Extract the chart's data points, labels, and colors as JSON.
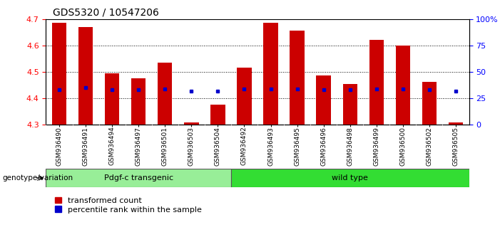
{
  "title": "GDS5320 / 10547206",
  "samples": [
    "GSM936490",
    "GSM936491",
    "GSM936494",
    "GSM936497",
    "GSM936501",
    "GSM936503",
    "GSM936504",
    "GSM936492",
    "GSM936493",
    "GSM936495",
    "GSM936496",
    "GSM936498",
    "GSM936499",
    "GSM936500",
    "GSM936502",
    "GSM936505"
  ],
  "transformed_count": [
    4.685,
    4.67,
    4.495,
    4.475,
    4.535,
    4.31,
    4.375,
    4.515,
    4.685,
    4.655,
    4.487,
    4.455,
    4.62,
    4.6,
    4.463,
    4.31
  ],
  "percentile_rank": [
    33,
    35,
    33,
    33,
    34,
    32,
    32,
    34,
    34,
    34,
    33,
    33,
    34,
    34,
    33,
    32
  ],
  "bar_color": "#cc0000",
  "dot_color": "#0000cc",
  "ylim": [
    4.3,
    4.7
  ],
  "yticks": [
    4.3,
    4.4,
    4.5,
    4.6,
    4.7
  ],
  "y2_ticks": [
    0,
    25,
    50,
    75,
    100
  ],
  "y2_labels": [
    "0",
    "25",
    "50",
    "75",
    "100%"
  ],
  "group1_label": "Pdgf-c transgenic",
  "group2_label": "wild type",
  "group1_count": 7,
  "group2_count": 9,
  "group_color1": "#98ee98",
  "group_color2": "#33dd33",
  "genotype_label": "genotype/variation",
  "legend1": "transformed count",
  "legend2": "percentile rank within the sample",
  "bar_width": 0.55,
  "ybase": 4.3,
  "tick_bg_color": "#c8c8c8",
  "title_fontsize": 10,
  "axis_label_fontsize": 8,
  "sample_fontsize": 6.5,
  "group_fontsize": 8,
  "legend_fontsize": 8
}
